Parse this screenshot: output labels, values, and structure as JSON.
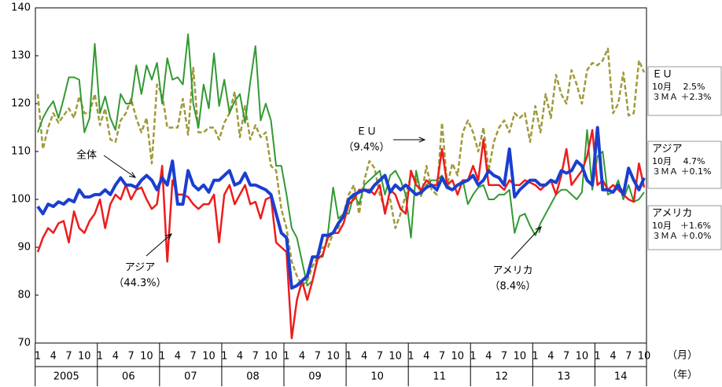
{
  "chart_data": {
    "type": "line",
    "xlabel": "（月）",
    "year_axis_label": "（年）",
    "years": [
      "2005",
      "06",
      "07",
      "08",
      "09",
      "10",
      "11",
      "12",
      "13",
      "14"
    ],
    "categories": [
      "1",
      null,
      null,
      "4",
      null,
      null,
      "7",
      null,
      null,
      "10",
      null,
      null,
      "1",
      null,
      null,
      "4",
      null,
      null,
      "7",
      null,
      null,
      "10",
      null,
      null,
      "1",
      null,
      null,
      "4",
      null,
      null,
      "7",
      null,
      null,
      "10",
      null,
      null,
      "1",
      null,
      null,
      "4",
      null,
      null,
      "7",
      null,
      null,
      "10",
      null,
      null,
      "1",
      null,
      null,
      "4",
      null,
      null,
      "7",
      null,
      null,
      "10",
      null,
      null,
      "1",
      null,
      null,
      "4",
      null,
      null,
      "7",
      null,
      null,
      "10",
      null,
      null,
      "1",
      null,
      null,
      "4",
      null,
      null,
      "7",
      null,
      null,
      "10",
      null,
      null,
      "1",
      null,
      null,
      "4",
      null,
      null,
      "7",
      null,
      null,
      "10",
      null,
      null,
      "1",
      null,
      null,
      "4",
      null,
      null,
      "7",
      null,
      null,
      "10",
      null,
      null,
      "1",
      null,
      null,
      "4",
      null,
      null,
      "7",
      null,
      null,
      "10"
    ],
    "ylim": [
      70,
      140
    ],
    "yticks": [
      70,
      80,
      90,
      100,
      110,
      120,
      130,
      140
    ],
    "series": [
      {
        "name": "全体",
        "color": "#1a3fcf",
        "width": 4,
        "dashed": false,
        "values": [
          98.5,
          97,
          99,
          98.5,
          99.5,
          99,
          100,
          99.5,
          102,
          100.5,
          100.5,
          101,
          101,
          102,
          101,
          103,
          104.5,
          103,
          103,
          102.5,
          104,
          105,
          104,
          102,
          104.5,
          103,
          108,
          99,
          99,
          106,
          103,
          102,
          103,
          101.5,
          104,
          104,
          105,
          106,
          103,
          103.5,
          105.5,
          103,
          103,
          102.5,
          102,
          101,
          97,
          93,
          92,
          81.5,
          82,
          83,
          84,
          88,
          88,
          92.5,
          92.5,
          93,
          95,
          96.5,
          100,
          101,
          101.5,
          102,
          101.5,
          103,
          104,
          105,
          101.5,
          103,
          102,
          103,
          102,
          101,
          101.5,
          102.5,
          103,
          102,
          104.5,
          102.5,
          102,
          103,
          103.5,
          104,
          105,
          103,
          104,
          106,
          105,
          104.5,
          103,
          110.5,
          100.5,
          102,
          103,
          104,
          104,
          103,
          103,
          104,
          103.5,
          106,
          105.5,
          106,
          108,
          107,
          104,
          103,
          115,
          102,
          102,
          101.5,
          103,
          101,
          106.5,
          104,
          102,
          104.5
        ]
      },
      {
        "name": "アジア",
        "share": "（44.3%）",
        "color": "#ee1c1c",
        "width": 2.5,
        "dashed": false,
        "values": [
          89,
          92,
          94,
          93,
          95,
          95.5,
          91,
          97.5,
          94,
          93,
          95.5,
          97,
          100,
          94,
          99,
          101,
          100,
          103,
          100,
          102,
          102.5,
          100,
          98,
          99,
          107,
          87,
          104,
          101,
          101,
          100.5,
          99,
          98,
          99,
          99,
          101,
          91,
          101,
          103,
          99,
          101,
          103,
          99,
          99.5,
          96,
          100,
          100.5,
          91,
          90,
          89,
          71,
          79,
          83,
          79,
          83,
          87.5,
          88.5,
          92,
          93,
          93,
          95,
          99,
          100,
          102,
          102,
          102,
          101,
          103,
          97,
          102,
          101,
          98,
          97,
          106,
          103,
          102,
          104,
          103,
          103,
          110.5,
          103,
          104,
          101,
          104,
          104,
          107,
          104,
          112.5,
          103,
          103,
          103,
          102,
          104,
          103,
          103,
          104,
          103.5,
          103,
          102,
          103,
          104,
          101,
          105,
          110.5,
          103,
          104.5,
          106,
          109,
          114.5,
          103,
          104,
          102,
          103,
          102,
          101,
          100,
          99.5,
          107.5,
          102.5
        ]
      },
      {
        "name": "アメリカ",
        "share": "（8.4%）",
        "color": "#339933",
        "width": 2,
        "dashed": false,
        "values": [
          114,
          117,
          119,
          120.5,
          117,
          121,
          125.5,
          125.5,
          125,
          114,
          117,
          132.5,
          118,
          121.5,
          117,
          114.5,
          122,
          120,
          120,
          128,
          122,
          128,
          125,
          128.5,
          120,
          129.5,
          125,
          125.5,
          124,
          134.5,
          120,
          115,
          124,
          119,
          130.5,
          119.5,
          125,
          118,
          120.5,
          122,
          116,
          124.5,
          132,
          116.5,
          120,
          116.5,
          107,
          107,
          101,
          94,
          92,
          87,
          82,
          83,
          88,
          88,
          93,
          102.5,
          96,
          97,
          97,
          101,
          99,
          103,
          104,
          105,
          106,
          101,
          105,
          106,
          104,
          101,
          92,
          106,
          101,
          103,
          104,
          104,
          105,
          103,
          102,
          103,
          104,
          99,
          101,
          102.5,
          103,
          100,
          100,
          101,
          101,
          102,
          93,
          96.5,
          97,
          94.5,
          92.5,
          95,
          97,
          99,
          101,
          102,
          102,
          101,
          100,
          101.5,
          114.5,
          102,
          109,
          110,
          101,
          101.5,
          104,
          100,
          103,
          99.5,
          100,
          101.5
        ]
      },
      {
        "name": "ＥＵ",
        "share": "（9.4%）",
        "color": "#a09a3a",
        "width": 2.5,
        "dashed": true,
        "values": [
          122,
          110.5,
          115,
          118,
          116,
          117.5,
          119,
          117,
          121.5,
          118,
          118,
          122,
          115.5,
          119,
          112.5,
          112,
          116.5,
          118,
          121,
          117,
          114,
          117,
          107.5,
          124,
          122,
          115,
          115,
          115,
          121,
          113.5,
          127.5,
          114,
          114,
          115,
          115,
          112.5,
          116,
          118,
          122.5,
          113,
          119.5,
          112.5,
          115.5,
          113,
          114,
          107,
          106,
          98,
          94,
          87,
          84,
          82,
          83,
          86,
          88,
          90,
          90,
          93,
          94,
          97,
          101,
          103,
          97,
          104,
          108,
          106.5,
          101,
          98,
          100,
          94,
          97,
          101,
          105,
          104.5,
          100.5,
          107,
          102,
          101,
          116,
          103,
          107.5,
          105,
          114,
          116.5,
          114,
          110,
          115,
          106,
          112,
          115,
          116.5,
          114,
          118,
          117,
          118,
          112,
          119.5,
          114,
          122,
          117,
          126,
          122,
          120,
          127,
          124,
          120,
          127,
          128.5,
          128,
          129,
          131.5,
          118,
          120,
          126.5,
          117.5,
          118,
          129,
          126.5
        ]
      }
    ],
    "side_notes": [
      {
        "title": "ＥＵ",
        "lines": [
          "10月　  2.5%",
          "３ＭＡ ＋2.3%"
        ]
      },
      {
        "title": "アジア",
        "lines": [
          "10月　  4.7%",
          "３ＭＡ ＋0.1%"
        ]
      },
      {
        "title": "アメリカ",
        "lines": [
          "10月　＋1.6%",
          "３ＭＡ ＋0.0%"
        ]
      }
    ]
  }
}
